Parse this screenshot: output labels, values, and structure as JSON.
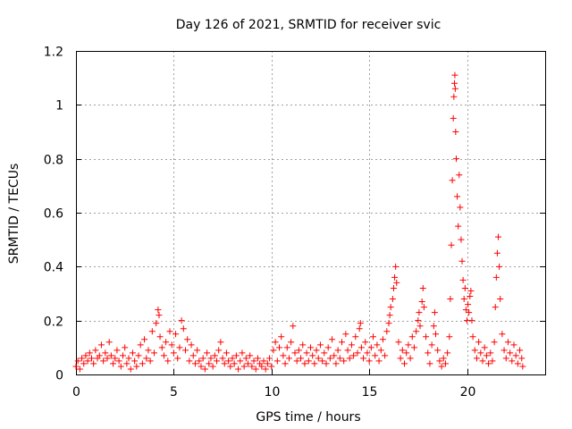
{
  "chart_data": {
    "type": "scatter",
    "title": "Day 126 of 2021, SRMTID for receiver svic",
    "xlabel": "GPS time / hours",
    "ylabel": "SRMTID / TECUs",
    "xlim": [
      0,
      24
    ],
    "ylim": [
      0,
      1.2
    ],
    "xticks": [
      0,
      5,
      10,
      15,
      20
    ],
    "yticks": [
      0,
      0.2,
      0.4,
      0.6,
      0.8,
      1,
      1.2
    ],
    "xtick_labels": [
      "0",
      "5",
      "10",
      "15",
      "20"
    ],
    "ytick_labels": [
      "0",
      "0.2",
      "0.4",
      "0.6",
      "0.8",
      "1",
      "1.2"
    ],
    "grid": true,
    "marker": "+",
    "color": "#ff0000",
    "series": [
      {
        "name": "SRMTID",
        "points": [
          [
            0.0,
            0.03
          ],
          [
            0.1,
            0.05
          ],
          [
            0.2,
            0.02
          ],
          [
            0.3,
            0.06
          ],
          [
            0.4,
            0.04
          ],
          [
            0.5,
            0.07
          ],
          [
            0.6,
            0.05
          ],
          [
            0.7,
            0.08
          ],
          [
            0.8,
            0.06
          ],
          [
            0.9,
            0.04
          ],
          [
            1.0,
            0.09
          ],
          [
            1.1,
            0.06
          ],
          [
            1.2,
            0.07
          ],
          [
            1.3,
            0.11
          ],
          [
            1.4,
            0.05
          ],
          [
            1.5,
            0.08
          ],
          [
            1.6,
            0.06
          ],
          [
            1.7,
            0.12
          ],
          [
            1.8,
            0.07
          ],
          [
            1.9,
            0.04
          ],
          [
            2.0,
            0.06
          ],
          [
            2.1,
            0.09
          ],
          [
            2.2,
            0.05
          ],
          [
            2.3,
            0.03
          ],
          [
            2.4,
            0.07
          ],
          [
            2.5,
            0.1
          ],
          [
            2.6,
            0.04
          ],
          [
            2.7,
            0.06
          ],
          [
            2.8,
            0.02
          ],
          [
            2.9,
            0.08
          ],
          [
            3.0,
            0.05
          ],
          [
            3.1,
            0.03
          ],
          [
            3.2,
            0.07
          ],
          [
            3.3,
            0.11
          ],
          [
            3.4,
            0.04
          ],
          [
            3.5,
            0.13
          ],
          [
            3.6,
            0.06
          ],
          [
            3.7,
            0.09
          ],
          [
            3.8,
            0.05
          ],
          [
            3.9,
            0.16
          ],
          [
            4.0,
            0.08
          ],
          [
            4.1,
            0.19
          ],
          [
            4.2,
            0.24
          ],
          [
            4.25,
            0.22
          ],
          [
            4.3,
            0.14
          ],
          [
            4.4,
            0.1
          ],
          [
            4.5,
            0.07
          ],
          [
            4.6,
            0.12
          ],
          [
            4.7,
            0.05
          ],
          [
            4.8,
            0.16
          ],
          [
            4.9,
            0.11
          ],
          [
            5.0,
            0.08
          ],
          [
            5.1,
            0.15
          ],
          [
            5.2,
            0.06
          ],
          [
            5.3,
            0.1
          ],
          [
            5.4,
            0.2
          ],
          [
            5.5,
            0.17
          ],
          [
            5.6,
            0.09
          ],
          [
            5.7,
            0.13
          ],
          [
            5.8,
            0.05
          ],
          [
            5.9,
            0.11
          ],
          [
            6.0,
            0.07
          ],
          [
            6.1,
            0.04
          ],
          [
            6.2,
            0.09
          ],
          [
            6.3,
            0.05
          ],
          [
            6.4,
            0.03
          ],
          [
            6.5,
            0.06
          ],
          [
            6.6,
            0.02
          ],
          [
            6.7,
            0.08
          ],
          [
            6.8,
            0.04
          ],
          [
            6.9,
            0.06
          ],
          [
            7.0,
            0.03
          ],
          [
            7.1,
            0.07
          ],
          [
            7.2,
            0.05
          ],
          [
            7.3,
            0.09
          ],
          [
            7.4,
            0.12
          ],
          [
            7.5,
            0.06
          ],
          [
            7.6,
            0.04
          ],
          [
            7.7,
            0.08
          ],
          [
            7.8,
            0.05
          ],
          [
            7.9,
            0.03
          ],
          [
            8.0,
            0.06
          ],
          [
            8.1,
            0.04
          ],
          [
            8.2,
            0.07
          ],
          [
            8.3,
            0.02
          ],
          [
            8.4,
            0.05
          ],
          [
            8.5,
            0.08
          ],
          [
            8.6,
            0.03
          ],
          [
            8.7,
            0.06
          ],
          [
            8.8,
            0.04
          ],
          [
            8.9,
            0.07
          ],
          [
            9.0,
            0.03
          ],
          [
            9.1,
            0.05
          ],
          [
            9.2,
            0.02
          ],
          [
            9.3,
            0.06
          ],
          [
            9.4,
            0.04
          ],
          [
            9.5,
            0.03
          ],
          [
            9.6,
            0.05
          ],
          [
            9.7,
            0.02
          ],
          [
            9.8,
            0.04
          ],
          [
            9.9,
            0.06
          ],
          [
            10.0,
            0.03
          ],
          [
            10.1,
            0.09
          ],
          [
            10.2,
            0.12
          ],
          [
            10.3,
            0.05
          ],
          [
            10.4,
            0.1
          ],
          [
            10.5,
            0.14
          ],
          [
            10.6,
            0.07
          ],
          [
            10.7,
            0.04
          ],
          [
            10.8,
            0.1
          ],
          [
            10.9,
            0.06
          ],
          [
            11.0,
            0.12
          ],
          [
            11.1,
            0.18
          ],
          [
            11.2,
            0.08
          ],
          [
            11.3,
            0.05
          ],
          [
            11.4,
            0.09
          ],
          [
            11.5,
            0.06
          ],
          [
            11.6,
            0.11
          ],
          [
            11.7,
            0.04
          ],
          [
            11.8,
            0.08
          ],
          [
            11.9,
            0.05
          ],
          [
            12.0,
            0.1
          ],
          [
            12.1,
            0.07
          ],
          [
            12.2,
            0.04
          ],
          [
            12.3,
            0.09
          ],
          [
            12.4,
            0.06
          ],
          [
            12.5,
            0.11
          ],
          [
            12.6,
            0.05
          ],
          [
            12.7,
            0.08
          ],
          [
            12.8,
            0.04
          ],
          [
            12.9,
            0.1
          ],
          [
            13.0,
            0.06
          ],
          [
            13.1,
            0.13
          ],
          [
            13.2,
            0.07
          ],
          [
            13.3,
            0.04
          ],
          [
            13.4,
            0.09
          ],
          [
            13.5,
            0.06
          ],
          [
            13.6,
            0.12
          ],
          [
            13.7,
            0.05
          ],
          [
            13.8,
            0.15
          ],
          [
            13.9,
            0.09
          ],
          [
            14.0,
            0.06
          ],
          [
            14.1,
            0.11
          ],
          [
            14.2,
            0.07
          ],
          [
            14.3,
            0.14
          ],
          [
            14.4,
            0.08
          ],
          [
            14.5,
            0.17
          ],
          [
            14.55,
            0.19
          ],
          [
            14.6,
            0.1
          ],
          [
            14.7,
            0.06
          ],
          [
            14.8,
            0.12
          ],
          [
            14.9,
            0.08
          ],
          [
            15.0,
            0.05
          ],
          [
            15.1,
            0.1
          ],
          [
            15.2,
            0.14
          ],
          [
            15.3,
            0.07
          ],
          [
            15.4,
            0.11
          ],
          [
            15.5,
            0.05
          ],
          [
            15.6,
            0.09
          ],
          [
            15.7,
            0.13
          ],
          [
            15.8,
            0.07
          ],
          [
            15.9,
            0.16
          ],
          [
            16.0,
            0.19
          ],
          [
            16.05,
            0.22
          ],
          [
            16.1,
            0.25
          ],
          [
            16.2,
            0.28
          ],
          [
            16.25,
            0.32
          ],
          [
            16.3,
            0.36
          ],
          [
            16.35,
            0.4
          ],
          [
            16.4,
            0.34
          ],
          [
            16.5,
            0.12
          ],
          [
            16.6,
            0.06
          ],
          [
            16.7,
            0.09
          ],
          [
            16.8,
            0.04
          ],
          [
            16.9,
            0.08
          ],
          [
            17.0,
            0.11
          ],
          [
            17.1,
            0.06
          ],
          [
            17.2,
            0.14
          ],
          [
            17.3,
            0.1
          ],
          [
            17.4,
            0.16
          ],
          [
            17.5,
            0.2
          ],
          [
            17.55,
            0.23
          ],
          [
            17.6,
            0.18
          ],
          [
            17.7,
            0.27
          ],
          [
            17.75,
            0.32
          ],
          [
            17.8,
            0.25
          ],
          [
            17.9,
            0.14
          ],
          [
            18.0,
            0.08
          ],
          [
            18.1,
            0.04
          ],
          [
            18.2,
            0.11
          ],
          [
            18.3,
            0.18
          ],
          [
            18.35,
            0.23
          ],
          [
            18.4,
            0.15
          ],
          [
            18.5,
            0.09
          ],
          [
            18.6,
            0.05
          ],
          [
            18.7,
            0.03
          ],
          [
            18.8,
            0.06
          ],
          [
            18.9,
            0.04
          ],
          [
            19.0,
            0.08
          ],
          [
            19.1,
            0.14
          ],
          [
            19.15,
            0.28
          ],
          [
            19.2,
            0.48
          ],
          [
            19.25,
            0.72
          ],
          [
            19.3,
            0.95
          ],
          [
            19.33,
            1.03
          ],
          [
            19.36,
            1.08
          ],
          [
            19.38,
            1.11
          ],
          [
            19.4,
            1.06
          ],
          [
            19.42,
            0.9
          ],
          [
            19.45,
            0.8
          ],
          [
            19.5,
            0.66
          ],
          [
            19.55,
            0.55
          ],
          [
            19.6,
            0.74
          ],
          [
            19.65,
            0.62
          ],
          [
            19.7,
            0.5
          ],
          [
            19.75,
            0.42
          ],
          [
            19.8,
            0.35
          ],
          [
            19.85,
            0.28
          ],
          [
            19.9,
            0.32
          ],
          [
            19.95,
            0.24
          ],
          [
            20.0,
            0.2
          ],
          [
            20.05,
            0.26
          ],
          [
            20.1,
            0.23
          ],
          [
            20.15,
            0.29
          ],
          [
            20.2,
            0.31
          ],
          [
            20.25,
            0.2
          ],
          [
            20.3,
            0.14
          ],
          [
            20.4,
            0.09
          ],
          [
            20.5,
            0.06
          ],
          [
            20.6,
            0.12
          ],
          [
            20.7,
            0.08
          ],
          [
            20.8,
            0.05
          ],
          [
            20.9,
            0.1
          ],
          [
            21.0,
            0.07
          ],
          [
            21.1,
            0.04
          ],
          [
            21.2,
            0.08
          ],
          [
            21.3,
            0.05
          ],
          [
            21.4,
            0.12
          ],
          [
            21.45,
            0.25
          ],
          [
            21.5,
            0.36
          ],
          [
            21.55,
            0.45
          ],
          [
            21.6,
            0.51
          ],
          [
            21.65,
            0.4
          ],
          [
            21.7,
            0.28
          ],
          [
            21.8,
            0.15
          ],
          [
            21.9,
            0.09
          ],
          [
            22.0,
            0.06
          ],
          [
            22.1,
            0.12
          ],
          [
            22.2,
            0.08
          ],
          [
            22.3,
            0.05
          ],
          [
            22.4,
            0.11
          ],
          [
            22.5,
            0.07
          ],
          [
            22.6,
            0.04
          ],
          [
            22.7,
            0.09
          ],
          [
            22.8,
            0.06
          ],
          [
            22.85,
            0.03
          ]
        ]
      }
    ]
  }
}
